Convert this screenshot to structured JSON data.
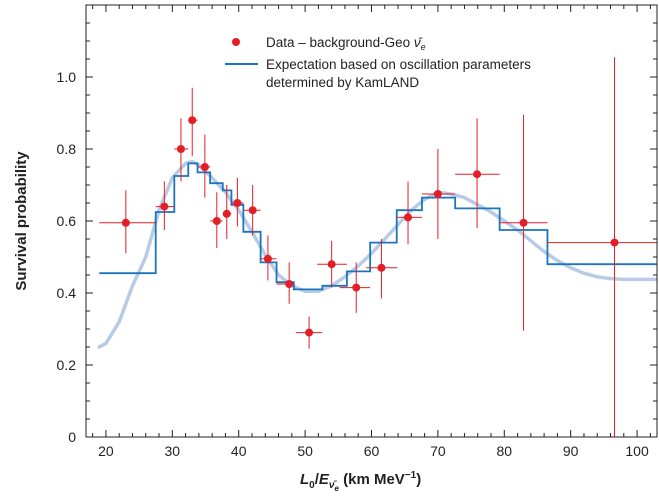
{
  "chart_data": {
    "type": "scatter",
    "title": "",
    "xlabel": "L0/E(ν̄e) (km MeV⁻¹)",
    "xlabel_parts": {
      "L": "L",
      "sub0": "0",
      "slash": "/",
      "E": "E",
      "sub_nu": "ν̄",
      "sub_e": "e",
      "units": " (km MeV",
      "exp": "−1",
      "close": ")"
    },
    "ylabel": "Survival probability",
    "xlim": [
      17,
      103
    ],
    "ylim": [
      0,
      1.2
    ],
    "x_ticks": [
      20,
      30,
      40,
      50,
      60,
      70,
      80,
      90,
      100
    ],
    "x_tick_labels": [
      "20",
      "30",
      "40",
      "50",
      "60",
      "70",
      "80",
      "90",
      "100"
    ],
    "y_ticks": [
      0,
      0.2,
      0.4,
      0.6,
      0.8,
      1.0
    ],
    "y_tick_labels": [
      "0",
      "0.2",
      "0.4",
      "0.6",
      "0.8",
      "1.0"
    ],
    "minor_x_step": 2,
    "minor_y_step": 0.05,
    "grid": false,
    "legend_position": "top-center",
    "colors": {
      "data": "#e41e26",
      "step": "#1b75bb",
      "smooth": "#b7cbe6",
      "axis": "#231f20"
    },
    "series": [
      {
        "name": "Data – background-Geo ν̄e",
        "label_parts": {
          "main": "Data – background-Geo ",
          "nu": "ν̄",
          "sub": "e"
        },
        "type": "scatter",
        "points": [
          {
            "x": 23.0,
            "y": 0.595,
            "xerr": [
              19.0,
              27.5
            ],
            "yerr": [
              0.51,
              0.685
            ]
          },
          {
            "x": 28.8,
            "y": 0.64,
            "xerr": [
              27.5,
              30.3
            ],
            "yerr": [
              0.575,
              0.71
            ]
          },
          {
            "x": 31.3,
            "y": 0.8,
            "xerr": [
              30.3,
              32.4
            ],
            "yerr": [
              0.71,
              0.885
            ]
          },
          {
            "x": 33.0,
            "y": 0.88,
            "xerr": [
              32.4,
              33.8
            ],
            "yerr": [
              0.78,
              0.97
            ]
          },
          {
            "x": 34.9,
            "y": 0.75,
            "xerr": [
              33.8,
              35.7
            ],
            "yerr": [
              0.665,
              0.84
            ]
          },
          {
            "x": 36.7,
            "y": 0.6,
            "xerr": [
              35.7,
              37.6
            ],
            "yerr": [
              0.525,
              0.68
            ]
          },
          {
            "x": 38.2,
            "y": 0.62,
            "xerr": [
              37.6,
              38.9
            ],
            "yerr": [
              0.55,
              0.7
            ]
          },
          {
            "x": 39.8,
            "y": 0.65,
            "xerr": [
              38.9,
              40.7
            ],
            "yerr": [
              0.585,
              0.72
            ]
          },
          {
            "x": 42.1,
            "y": 0.63,
            "xerr": [
              40.7,
              43.3
            ],
            "yerr": [
              0.56,
              0.7
            ]
          },
          {
            "x": 44.4,
            "y": 0.495,
            "xerr": [
              43.3,
              45.7
            ],
            "yerr": [
              0.435,
              0.56
            ]
          },
          {
            "x": 47.6,
            "y": 0.425,
            "xerr": [
              45.7,
              48.3
            ],
            "yerr": [
              0.37,
              0.485
            ]
          },
          {
            "x": 50.6,
            "y": 0.29,
            "xerr": [
              48.6,
              52.6
            ],
            "yerr": [
              0.245,
              0.335
            ]
          },
          {
            "x": 54.0,
            "y": 0.48,
            "xerr": [
              51.8,
              56.3
            ],
            "yerr": [
              0.415,
              0.545
            ]
          },
          {
            "x": 57.7,
            "y": 0.415,
            "xerr": [
              55.2,
              59.8
            ],
            "yerr": [
              0.345,
              0.485
            ]
          },
          {
            "x": 61.5,
            "y": 0.47,
            "xerr": [
              59.2,
              63.9
            ],
            "yerr": [
              0.385,
              0.55
            ]
          },
          {
            "x": 65.5,
            "y": 0.61,
            "xerr": [
              63.8,
              67.6
            ],
            "yerr": [
              0.535,
              0.71
            ]
          },
          {
            "x": 70.0,
            "y": 0.675,
            "xerr": [
              67.6,
              72.6
            ],
            "yerr": [
              0.55,
              0.8
            ]
          },
          {
            "x": 75.9,
            "y": 0.73,
            "xerr": [
              72.6,
              79.3
            ],
            "yerr": [
              0.58,
              0.885
            ]
          },
          {
            "x": 82.9,
            "y": 0.595,
            "xerr": [
              79.3,
              86.5
            ],
            "yerr": [
              0.295,
              0.895
            ]
          },
          {
            "x": 96.6,
            "y": 0.54,
            "xerr": [
              86.5,
              104.0
            ],
            "yerr": [
              0.0,
              1.055
            ]
          }
        ]
      },
      {
        "name": "Expectation based on oscillation parameters determined by KamLAND",
        "label_lines": [
          "Expectation based on oscillation parameters",
          "determined by KamLAND"
        ],
        "type": "step",
        "x": [
          19.0,
          27.5,
          27.5,
          30.3,
          30.3,
          32.4,
          32.4,
          33.8,
          33.8,
          35.7,
          35.7,
          37.6,
          37.6,
          38.9,
          38.9,
          40.7,
          40.7,
          43.3,
          43.3,
          45.7,
          45.7,
          48.3,
          48.3,
          52.6,
          52.6,
          56.3,
          56.3,
          59.8,
          59.8,
          63.8,
          63.8,
          67.6,
          67.6,
          72.6,
          72.6,
          79.3,
          79.3,
          86.5,
          86.5,
          104.0
        ],
        "y": [
          0.455,
          0.455,
          0.625,
          0.625,
          0.725,
          0.725,
          0.76,
          0.76,
          0.735,
          0.735,
          0.705,
          0.705,
          0.685,
          0.685,
          0.645,
          0.645,
          0.57,
          0.57,
          0.485,
          0.485,
          0.43,
          0.43,
          0.41,
          0.41,
          0.42,
          0.42,
          0.46,
          0.46,
          0.54,
          0.54,
          0.63,
          0.63,
          0.665,
          0.665,
          0.635,
          0.635,
          0.575,
          0.575,
          0.48,
          0.48
        ]
      },
      {
        "name": "",
        "type": "line",
        "smooth": true,
        "x": [
          19,
          20,
          22,
          24,
          26,
          28,
          30,
          32,
          33,
          34,
          36,
          38,
          40,
          42,
          44,
          46,
          48,
          50,
          52,
          54,
          56,
          58,
          60,
          62,
          64,
          66,
          68,
          70,
          72,
          74,
          76,
          78,
          80,
          82,
          84,
          86,
          88,
          90,
          92,
          94,
          96,
          98,
          100,
          103
        ],
        "y": [
          0.25,
          0.26,
          0.32,
          0.42,
          0.5,
          0.63,
          0.72,
          0.76,
          0.765,
          0.755,
          0.72,
          0.68,
          0.63,
          0.57,
          0.505,
          0.45,
          0.42,
          0.405,
          0.405,
          0.42,
          0.445,
          0.475,
          0.51,
          0.55,
          0.59,
          0.63,
          0.66,
          0.68,
          0.675,
          0.665,
          0.645,
          0.625,
          0.6,
          0.575,
          0.545,
          0.515,
          0.49,
          0.47,
          0.455,
          0.445,
          0.44,
          0.438,
          0.438,
          0.438
        ]
      }
    ]
  }
}
